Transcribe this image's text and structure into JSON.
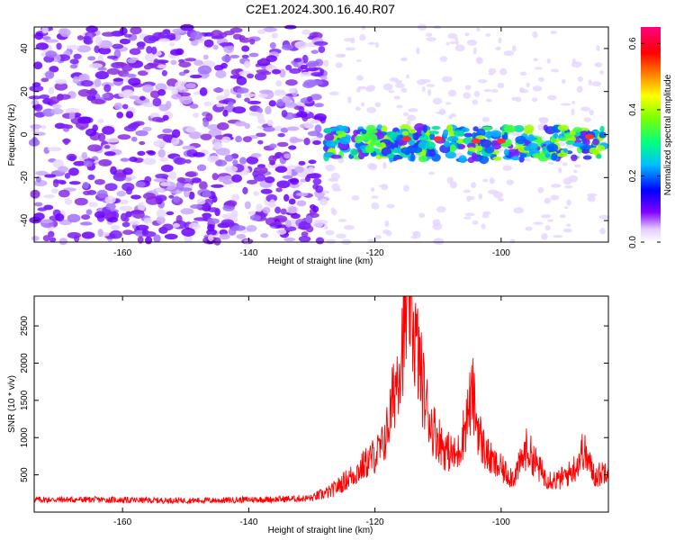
{
  "title": "C2E1.2024.300.16.40.R07",
  "chart_data": [
    {
      "type": "heatmap",
      "xlabel": "Height of straight line (km)",
      "ylabel": "Frequency (Hz)",
      "xlim": [
        -174,
        -83
      ],
      "ylim": [
        -50,
        50
      ],
      "xticks": [
        -160,
        -140,
        -120,
        -100
      ],
      "yticks": [
        -40,
        -20,
        0,
        20,
        40
      ],
      "colorbar": {
        "label": "Normalized spectral amplitude",
        "range": [
          0.0,
          0.65
        ],
        "ticks": [
          0.0,
          0.2,
          0.4,
          0.6
        ]
      }
    },
    {
      "type": "line",
      "xlabel": "Height of straight line (km)",
      "ylabel": "SNR (10 * v/v)",
      "xlim": [
        -174,
        -83
      ],
      "ylim": [
        0,
        2900
      ],
      "xticks": [
        -160,
        -140,
        -120,
        -100
      ],
      "yticks": [
        500,
        1000,
        1500,
        2000,
        2500
      ],
      "color": "#ff0000",
      "series": [
        {
          "x": [
            -174,
            -170,
            -165,
            -160,
            -155,
            -150,
            -145,
            -140,
            -135,
            -130,
            -127,
            -125,
            -123,
            -121,
            -119,
            -118,
            -117,
            -116,
            -115,
            -114.5,
            -114,
            -113,
            -112,
            -111,
            -110,
            -109,
            -108,
            -107,
            -106,
            -105,
            -104.5,
            -104,
            -103,
            -102,
            -101,
            -100,
            -99,
            -98,
            -97,
            -96,
            -95,
            -94,
            -93,
            -92,
            -91,
            -90,
            -89,
            -88,
            -87,
            -86,
            -85,
            -84,
            -83
          ],
          "y": [
            160,
            160,
            160,
            155,
            150,
            150,
            150,
            160,
            165,
            180,
            260,
            380,
            500,
            650,
            800,
            1050,
            1500,
            2000,
            2500,
            2850,
            2400,
            1900,
            1400,
            1100,
            950,
            800,
            750,
            700,
            1000,
            1350,
            1500,
            1200,
            850,
            700,
            600,
            550,
            480,
            450,
            600,
            800,
            700,
            550,
            450,
            420,
            400,
            450,
            500,
            600,
            800,
            600,
            450,
            500,
            600
          ]
        }
      ]
    }
  ]
}
